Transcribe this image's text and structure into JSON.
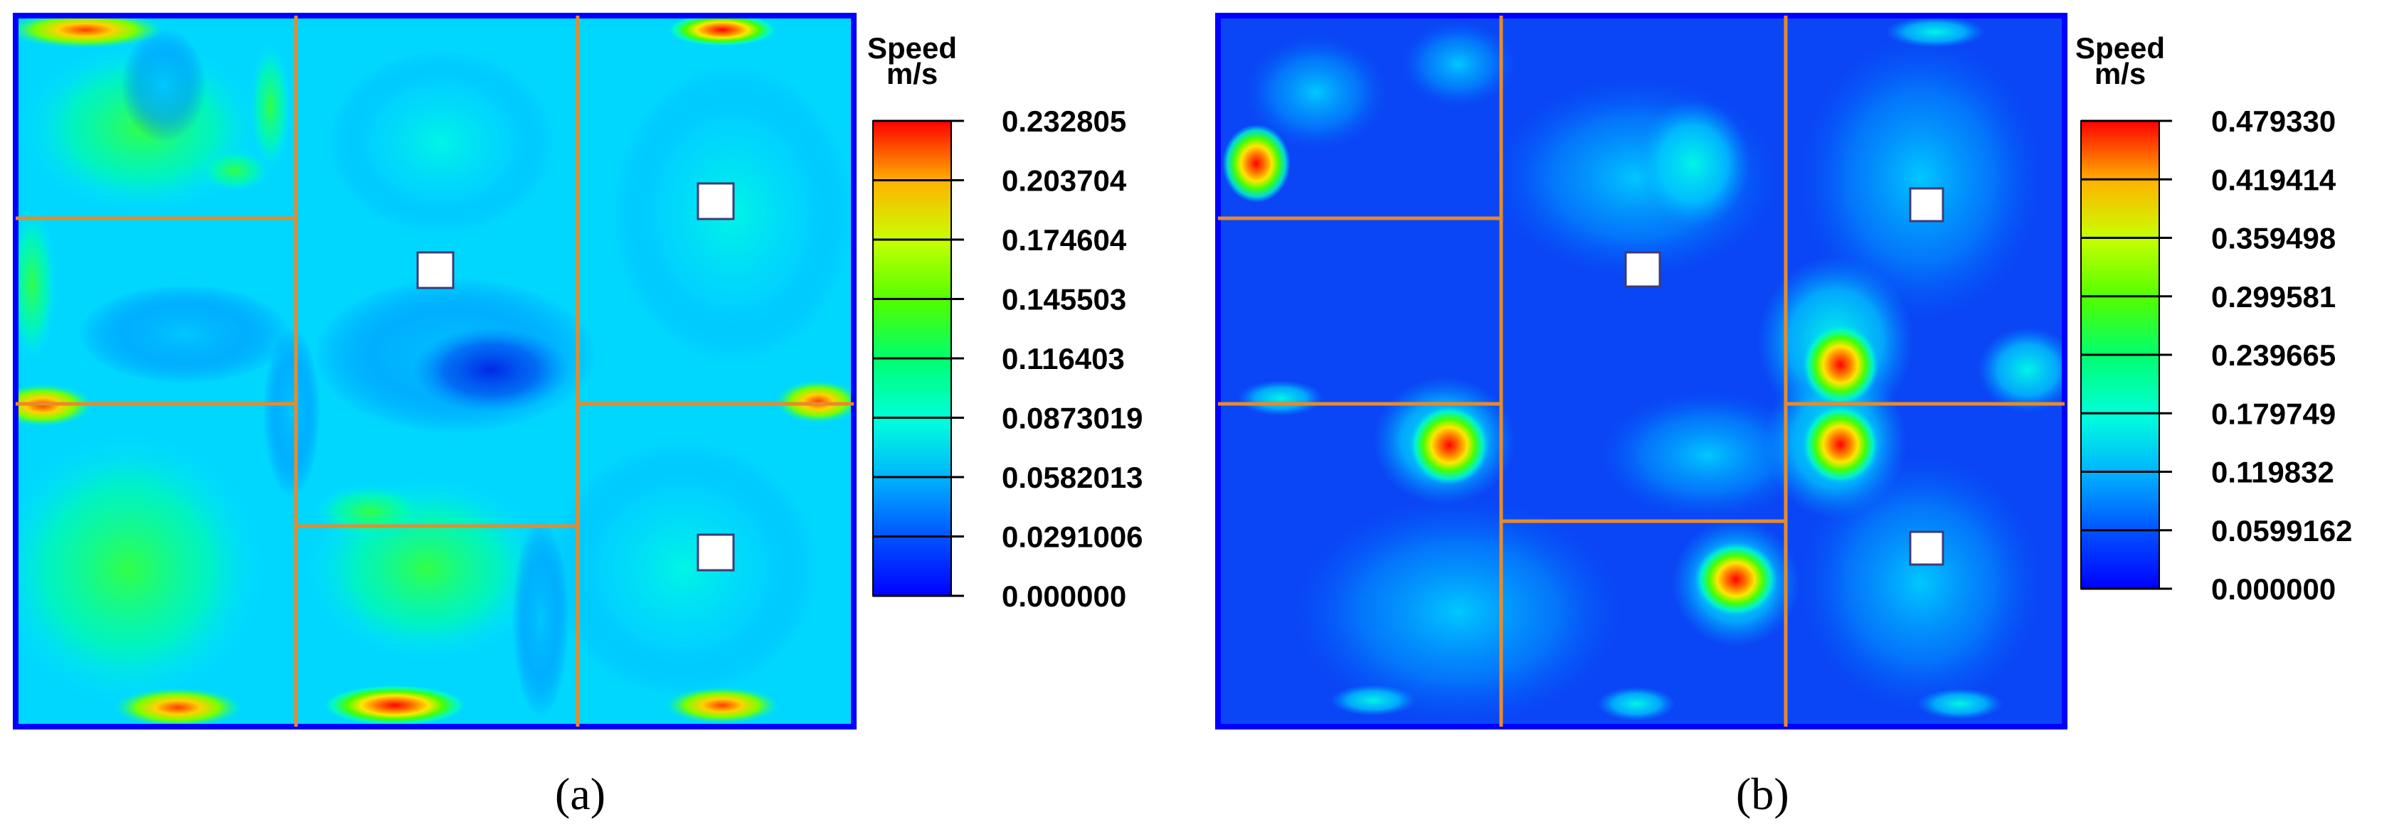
{
  "panels": [
    {
      "caption": "(a)",
      "legend": {
        "title_line1": "Speed",
        "title_line2": "m/s",
        "ticks": [
          "0.232805",
          "0.203704",
          "0.174604",
          "0.145503",
          "0.116403",
          "0.0873019",
          "0.0582013",
          "0.0291006",
          "0.000000"
        ]
      }
    },
    {
      "caption": "(b)",
      "legend": {
        "title_line1": "Speed",
        "title_line2": "m/s",
        "ticks": [
          "0.479330",
          "0.419414",
          "0.359498",
          "0.299581",
          "0.239665",
          "0.179749",
          "0.119832",
          "0.0599162",
          "0.000000"
        ]
      }
    }
  ],
  "colors": {
    "colormap": [
      "#0000ff",
      "#0064ff",
      "#00c8ff",
      "#00ffc8",
      "#00ff64",
      "#64ff00",
      "#c8ff00",
      "#ffc800",
      "#ff6400",
      "#ff0000"
    ],
    "wall": "#e88a2a",
    "window": "#ffffff"
  }
}
